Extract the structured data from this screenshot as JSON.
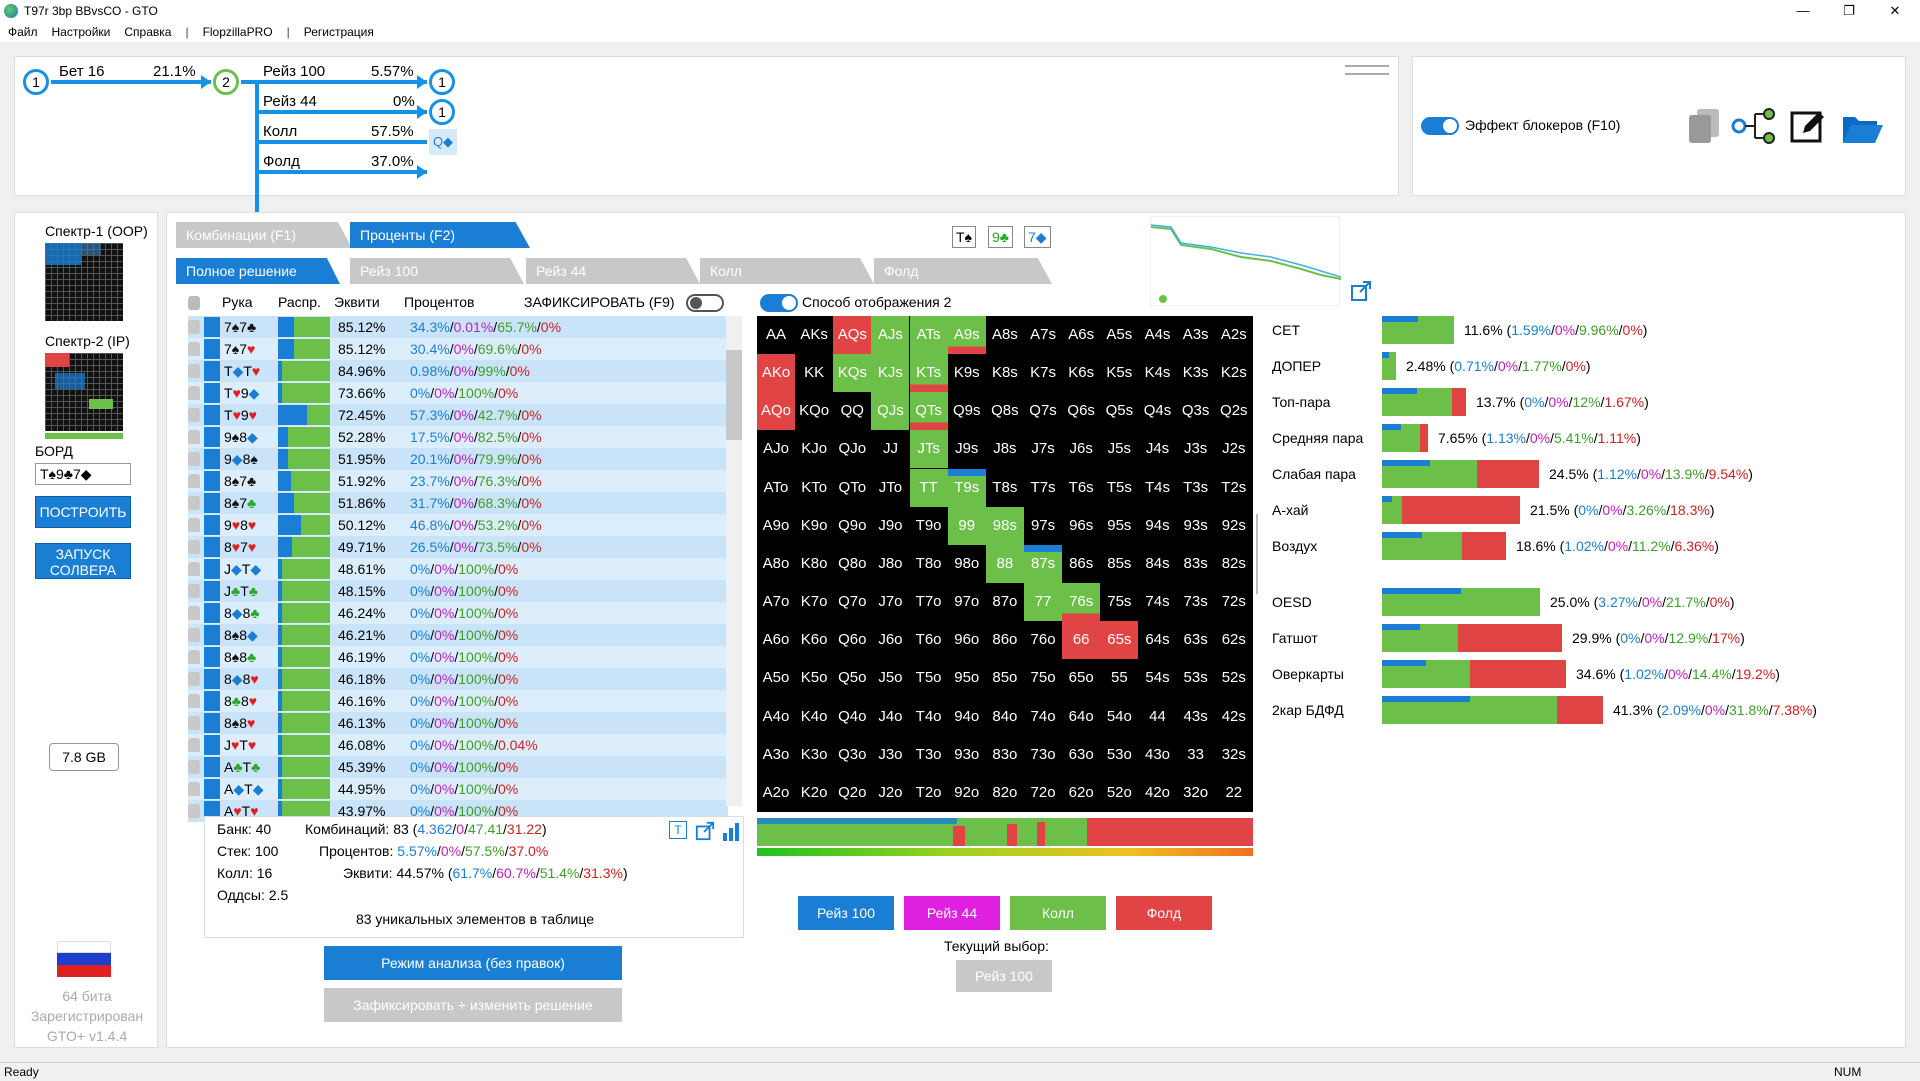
{
  "window": {
    "title": "T97r 3bp BBvsCO - GTO",
    "min": "—",
    "max": "❐",
    "close": "✕"
  },
  "menu": [
    "Файл",
    "Настройки",
    "Справка",
    "|",
    "FlopzillaPRO",
    "|",
    "Регистрация"
  ],
  "tree": {
    "node1": "1",
    "node2": "2",
    "bet": {
      "label": "Бет 16",
      "pct": "21.1%"
    },
    "actions": [
      {
        "label": "Рейз 100",
        "pct": "5.57%",
        "end": "1"
      },
      {
        "label": "Рейз 44",
        "pct": "0%",
        "end": "1"
      },
      {
        "label": "Колл",
        "pct": "57.5%",
        "end": "Q◆"
      },
      {
        "label": "Фолд",
        "pct": "37.0%"
      }
    ]
  },
  "tools": {
    "blockers_label": "Эффект блокеров (F10)",
    "icons": [
      "copy-icon",
      "tree-icon",
      "edit-icon",
      "folder-icon"
    ]
  },
  "left": {
    "range1": "Спектр-1 (OOP)",
    "range2": "Спектр-2 (IP)",
    "board_label": "БОРД",
    "board_value": "T♠9♣7◆",
    "build_btn": "ПОСТРОИТЬ",
    "solver_btn": "ЗАПУСК СОЛВЕРА",
    "memory": "7.8 GB",
    "bits": "64 бита",
    "registered": "Зарегистрирован",
    "version": "GTO+ v1.4.4"
  },
  "tabs": {
    "combos": "Комбинации (F1)",
    "percents": "Проценты (F2)",
    "full": "Полное решение",
    "raise100": "Рейз 100",
    "raise44": "Рейз 44",
    "call": "Колл",
    "fold": "Фолд"
  },
  "board_cards": [
    "T♠",
    "9♣",
    "7◆"
  ],
  "table": {
    "headers": {
      "hand": "Рука",
      "dist": "Распр.",
      "equity": "Эквити",
      "percents": "Процентов",
      "lock": "ЗАФИКСИРОВАТЬ (F9)"
    },
    "rows": [
      {
        "hand": [
          "7",
          "♠",
          "7",
          "♣"
        ],
        "sc": [
          "blk",
          "blk"
        ],
        "eq": "85.12%",
        "p": [
          "34.3%",
          "0.01%",
          "65.7%",
          "0%"
        ],
        "dist": 0.3
      },
      {
        "hand": [
          "7",
          "♠",
          "7",
          "♥"
        ],
        "sc": [
          "blk",
          "red"
        ],
        "eq": "85.12%",
        "p": [
          "30.4%",
          "0%",
          "69.6%",
          "0%"
        ],
        "dist": 0.3
      },
      {
        "hand": [
          "T",
          "◆",
          "T",
          "♥"
        ],
        "sc": [
          "bl",
          "red"
        ],
        "eq": "84.96%",
        "p": [
          "0.98%",
          "0%",
          "99%",
          "0%"
        ],
        "dist": 0.05
      },
      {
        "hand": [
          "T",
          "♥",
          "9",
          "◆"
        ],
        "sc": [
          "red",
          "bl"
        ],
        "eq": "73.66%",
        "p": [
          "0%",
          "0%",
          "100%",
          "0%"
        ],
        "dist": 0
      },
      {
        "hand": [
          "T",
          "♥",
          "9",
          "♥"
        ],
        "sc": [
          "red",
          "red"
        ],
        "eq": "72.45%",
        "p": [
          "57.3%",
          "0%",
          "42.7%",
          "0%"
        ],
        "dist": 0.55
      },
      {
        "hand": [
          "9",
          "♠",
          "8",
          "◆"
        ],
        "sc": [
          "blk",
          "bl"
        ],
        "eq": "52.28%",
        "p": [
          "17.5%",
          "0%",
          "82.5%",
          "0%"
        ],
        "dist": 0.2
      },
      {
        "hand": [
          "9",
          "◆",
          "8",
          "♠"
        ],
        "sc": [
          "bl",
          "blk"
        ],
        "eq": "51.95%",
        "p": [
          "20.1%",
          "0%",
          "79.9%",
          "0%"
        ],
        "dist": 0.2
      },
      {
        "hand": [
          "8",
          "♠",
          "7",
          "♣"
        ],
        "sc": [
          "blk",
          "blk"
        ],
        "eq": "51.92%",
        "p": [
          "23.7%",
          "0%",
          "76.3%",
          "0%"
        ],
        "dist": 0.25
      },
      {
        "hand": [
          "8",
          "♠",
          "7",
          "♣"
        ],
        "sc": [
          "blk",
          "gr"
        ],
        "eq": "51.86%",
        "p": [
          "31.7%",
          "0%",
          "68.3%",
          "0%"
        ],
        "dist": 0.3
      },
      {
        "hand": [
          "9",
          "♥",
          "8",
          "♥"
        ],
        "sc": [
          "red",
          "red"
        ],
        "eq": "50.12%",
        "p": [
          "46.8%",
          "0%",
          "53.2%",
          "0%"
        ],
        "dist": 0.45
      },
      {
        "hand": [
          "8",
          "♥",
          "7",
          "♥"
        ],
        "sc": [
          "red",
          "red"
        ],
        "eq": "49.71%",
        "p": [
          "26.5%",
          "0%",
          "73.5%",
          "0%"
        ],
        "dist": 0.27
      },
      {
        "hand": [
          "J",
          "◆",
          "T",
          "◆"
        ],
        "sc": [
          "bl",
          "bl"
        ],
        "eq": "48.61%",
        "p": [
          "0%",
          "0%",
          "100%",
          "0%"
        ],
        "dist": 0
      },
      {
        "hand": [
          "J",
          "♣",
          "T",
          "♣"
        ],
        "sc": [
          "gr",
          "gr"
        ],
        "eq": "48.15%",
        "p": [
          "0%",
          "0%",
          "100%",
          "0%"
        ],
        "dist": 0
      },
      {
        "hand": [
          "8",
          "◆",
          "8",
          "♣"
        ],
        "sc": [
          "bl",
          "gr"
        ],
        "eq": "46.24%",
        "p": [
          "0%",
          "0%",
          "100%",
          "0%"
        ],
        "dist": 0
      },
      {
        "hand": [
          "8",
          "♠",
          "8",
          "◆"
        ],
        "sc": [
          "blk",
          "bl"
        ],
        "eq": "46.21%",
        "p": [
          "0%",
          "0%",
          "100%",
          "0%"
        ],
        "dist": 0
      },
      {
        "hand": [
          "8",
          "♠",
          "8",
          "♣"
        ],
        "sc": [
          "blk",
          "gr"
        ],
        "eq": "46.19%",
        "p": [
          "0%",
          "0%",
          "100%",
          "0%"
        ],
        "dist": 0
      },
      {
        "hand": [
          "8",
          "◆",
          "8",
          "♥"
        ],
        "sc": [
          "bl",
          "red"
        ],
        "eq": "46.18%",
        "p": [
          "0%",
          "0%",
          "100%",
          "0%"
        ],
        "dist": 0
      },
      {
        "hand": [
          "8",
          "♣",
          "8",
          "♥"
        ],
        "sc": [
          "gr",
          "red"
        ],
        "eq": "46.16%",
        "p": [
          "0%",
          "0%",
          "100%",
          "0%"
        ],
        "dist": 0
      },
      {
        "hand": [
          "8",
          "♠",
          "8",
          "♥"
        ],
        "sc": [
          "blk",
          "red"
        ],
        "eq": "46.13%",
        "p": [
          "0%",
          "0%",
          "100%",
          "0%"
        ],
        "dist": 0
      },
      {
        "hand": [
          "J",
          "♥",
          "T",
          "♥"
        ],
        "sc": [
          "red",
          "red"
        ],
        "eq": "46.08%",
        "p": [
          "0%",
          "0%",
          "100%",
          "0.04%"
        ],
        "dist": 0
      },
      {
        "hand": [
          "A",
          "♣",
          "T",
          "♣"
        ],
        "sc": [
          "gr",
          "gr"
        ],
        "eq": "45.39%",
        "p": [
          "0%",
          "0%",
          "100%",
          "0%"
        ],
        "dist": 0
      },
      {
        "hand": [
          "A",
          "◆",
          "T",
          "◆"
        ],
        "sc": [
          "bl",
          "bl"
        ],
        "eq": "44.95%",
        "p": [
          "0%",
          "0%",
          "100%",
          "0%"
        ],
        "dist": 0
      },
      {
        "hand": [
          "A",
          "♥",
          "T",
          "♥"
        ],
        "sc": [
          "red",
          "red"
        ],
        "eq": "43.97%",
        "p": [
          "0%",
          "0%",
          "100%",
          "0%"
        ],
        "dist": 0
      }
    ]
  },
  "summary": {
    "bank": "Банк: 40",
    "stack": "Стек: 100",
    "call": "Колл: 16",
    "odds": "Оддсы: 2.5",
    "combos_label": "Комбинаций:",
    "combos_total": "83",
    "combos_parts": [
      "4.362",
      "0",
      "47.41",
      "31.22"
    ],
    "pct_label": "Процентов:",
    "pct_parts": [
      "5.57%",
      "0%",
      "57.5%",
      "37.0%"
    ],
    "eq_label": "Эквити:",
    "eq_total": "44.57%",
    "eq_parts": [
      "61.7%",
      "60.7%",
      "51.4%",
      "31.3%"
    ],
    "unique": "83 уникальных элементов в таблице"
  },
  "mode_btn": "Режим анализа (без правок)",
  "lock_btn": "Зафиксировать + изменить решение",
  "display_mode": "Способ отображения 2",
  "grid": {
    "cells": [
      [
        "AA",
        "AKs",
        "AQs",
        "AJs",
        "ATs",
        "A9s",
        "A8s",
        "A7s",
        "A6s",
        "A5s",
        "A4s",
        "A3s",
        "A2s"
      ],
      [
        "AKo",
        "KK",
        "KQs",
        "KJs",
        "KTs",
        "K9s",
        "K8s",
        "K7s",
        "K6s",
        "K5s",
        "K4s",
        "K3s",
        "K2s"
      ],
      [
        "AQo",
        "KQo",
        "QQ",
        "QJs",
        "QTs",
        "Q9s",
        "Q8s",
        "Q7s",
        "Q6s",
        "Q5s",
        "Q4s",
        "Q3s",
        "Q2s"
      ],
      [
        "AJo",
        "KJo",
        "QJo",
        "JJ",
        "JTs",
        "J9s",
        "J8s",
        "J7s",
        "J6s",
        "J5s",
        "J4s",
        "J3s",
        "J2s"
      ],
      [
        "ATo",
        "KTo",
        "QTo",
        "JTo",
        "TT",
        "T9s",
        "T8s",
        "T7s",
        "T6s",
        "T5s",
        "T4s",
        "T3s",
        "T2s"
      ],
      [
        "A9o",
        "K9o",
        "Q9o",
        "J9o",
        "T9o",
        "99",
        "98s",
        "97s",
        "96s",
        "95s",
        "94s",
        "93s",
        "92s"
      ],
      [
        "A8o",
        "K8o",
        "Q8o",
        "J8o",
        "T8o",
        "98o",
        "88",
        "87s",
        "86s",
        "85s",
        "84s",
        "83s",
        "82s"
      ],
      [
        "A7o",
        "K7o",
        "Q7o",
        "J7o",
        "T7o",
        "97o",
        "87o",
        "77",
        "76s",
        "75s",
        "74s",
        "73s",
        "72s"
      ],
      [
        "A6o",
        "K6o",
        "Q6o",
        "J6o",
        "T6o",
        "96o",
        "86o",
        "76o",
        "66",
        "65s",
        "64s",
        "63s",
        "62s"
      ],
      [
        "A5o",
        "K5o",
        "Q5o",
        "J5o",
        "T5o",
        "95o",
        "85o",
        "75o",
        "65o",
        "55",
        "54s",
        "53s",
        "52s"
      ],
      [
        "A4o",
        "K4o",
        "Q4o",
        "J4o",
        "T4o",
        "94o",
        "84o",
        "74o",
        "64o",
        "54o",
        "44",
        "43s",
        "42s"
      ],
      [
        "A3o",
        "K3o",
        "Q3o",
        "J3o",
        "T3o",
        "93o",
        "83o",
        "73o",
        "63o",
        "53o",
        "43o",
        "33",
        "32s"
      ],
      [
        "A2o",
        "K2o",
        "Q2o",
        "J2o",
        "T2o",
        "92o",
        "82o",
        "72o",
        "62o",
        "52o",
        "42o",
        "32o",
        "22"
      ]
    ],
    "colors": {
      "0,2": "r",
      "1,0": "r",
      "2,0": "r",
      "0,3": "g",
      "0,4": "g",
      "0,5": "gr",
      "1,2": "g",
      "1,3": "g",
      "1,4": "gr",
      "2,3": "g",
      "2,4": "gr",
      "3,4": "g",
      "4,4": "g",
      "4,5": "gb",
      "5,5": "g",
      "5,6": "g",
      "6,6": "g",
      "6,7": "gb",
      "7,7": "g",
      "7,8": "gr",
      "8,8": "r",
      "8,9": "r"
    }
  },
  "categories": [
    {
      "name": "СЕТ",
      "pct": "11.6%",
      "parts": [
        "1.59%",
        "0%",
        "9.96%",
        "0%"
      ],
      "g": 72,
      "r": 0
    },
    {
      "name": "ДОПЕР",
      "pct": "2.48%",
      "parts": [
        "0.71%",
        "0%",
        "1.77%",
        "0%"
      ],
      "g": 14,
      "r": 0
    },
    {
      "name": "Топ-пара",
      "pct": "13.7%",
      "parts": [
        "0%",
        "0%",
        "12%",
        "1.67%"
      ],
      "g": 70,
      "r": 14
    },
    {
      "name": "Средняя пара",
      "pct": "7.65%",
      "parts": [
        "1.13%",
        "0%",
        "5.41%",
        "1.11%"
      ],
      "g": 38,
      "r": 8
    },
    {
      "name": "Слабая пара",
      "pct": "24.5%",
      "parts": [
        "1.12%",
        "0%",
        "13.9%",
        "9.54%"
      ],
      "g": 95,
      "r": 62
    },
    {
      "name": "А-хай",
      "pct": "21.5%",
      "parts": [
        "0%",
        "0%",
        "3.26%",
        "18.3%"
      ],
      "g": 20,
      "r": 118
    },
    {
      "name": "Воздух",
      "pct": "18.6%",
      "parts": [
        "1.02%",
        "0%",
        "11.2%",
        "6.36%"
      ],
      "g": 80,
      "r": 44
    },
    {
      "name": "OESD",
      "pct": "25.0%",
      "parts": [
        "3.27%",
        "0%",
        "21.7%",
        "0%"
      ],
      "g": 158,
      "r": 0
    },
    {
      "name": "Гатшот",
      "pct": "29.9%",
      "parts": [
        "0%",
        "0%",
        "12.9%",
        "17%"
      ],
      "g": 76,
      "r": 104
    },
    {
      "name": "Оверкарты",
      "pct": "34.6%",
      "parts": [
        "1.02%",
        "0%",
        "14.4%",
        "19.2%"
      ],
      "g": 88,
      "r": 96
    },
    {
      "name": "2кар БДФД",
      "pct": "41.3%",
      "parts": [
        "2.09%",
        "0%",
        "31.8%",
        "7.38%"
      ],
      "g": 175,
      "r": 46
    }
  ],
  "action_buttons": [
    {
      "label": "Рейз 100",
      "color": "#1a7fd4"
    },
    {
      "label": "Рейз 44",
      "color": "#e020e0"
    },
    {
      "label": "Колл",
      "color": "#6cc04a"
    },
    {
      "label": "Фолд",
      "color": "#e04444"
    }
  ],
  "current_choice_label": "Текущий выбор:",
  "current_choice": "Рейз 100",
  "status": {
    "left": "Ready",
    "right": "NUM"
  }
}
